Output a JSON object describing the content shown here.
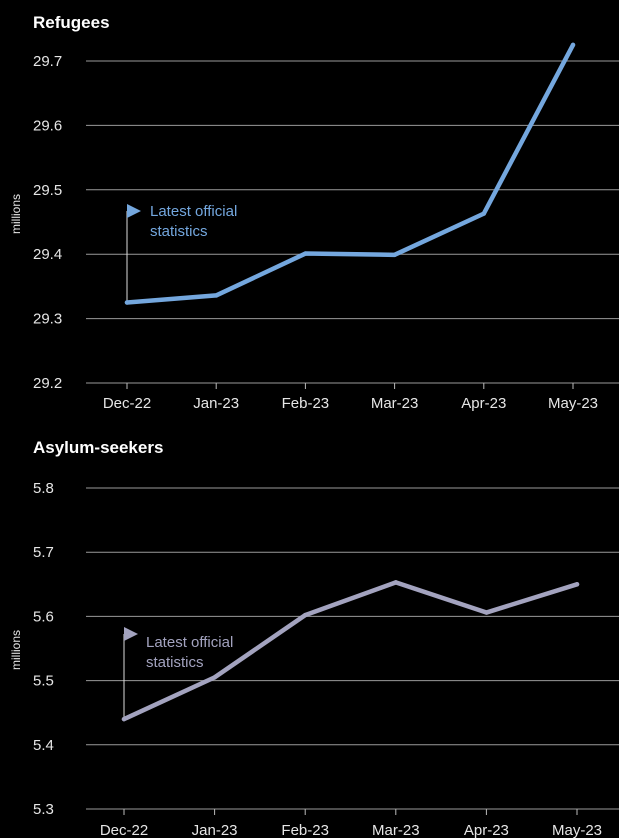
{
  "chart_data": [
    {
      "type": "line",
      "title": "Refugees",
      "ylabel": "millions",
      "categories": [
        "Dec-22",
        "Jan-23",
        "Feb-23",
        "Mar-23",
        "Apr-23",
        "May-23"
      ],
      "values": [
        29.325,
        29.336,
        29.401,
        29.399,
        29.463,
        29.725
      ],
      "yticks": [
        "29.7",
        "29.6",
        "29.5",
        "29.4",
        "29.3",
        "29.2"
      ],
      "ylim": [
        29.2,
        29.7
      ],
      "grid": true,
      "color": "#74a7de",
      "annotation": {
        "line1": "Latest official",
        "line2": "statistics",
        "at": "Dec-22"
      }
    },
    {
      "type": "line",
      "title": "Asylum-seekers",
      "ylabel": "millions",
      "categories": [
        "Dec-22",
        "Jan-23",
        "Feb-23",
        "Mar-23",
        "Apr-23",
        "May-23"
      ],
      "values": [
        5.44,
        5.505,
        5.602,
        5.653,
        5.606,
        5.65
      ],
      "yticks": [
        "5.8",
        "5.7",
        "5.6",
        "5.5",
        "5.4",
        "5.3"
      ],
      "ylim": [
        5.3,
        5.8
      ],
      "grid": true,
      "color": "#a3a3bf",
      "annotation": {
        "line1": "Latest official",
        "line2": "statistics",
        "at": "Dec-22"
      }
    }
  ]
}
